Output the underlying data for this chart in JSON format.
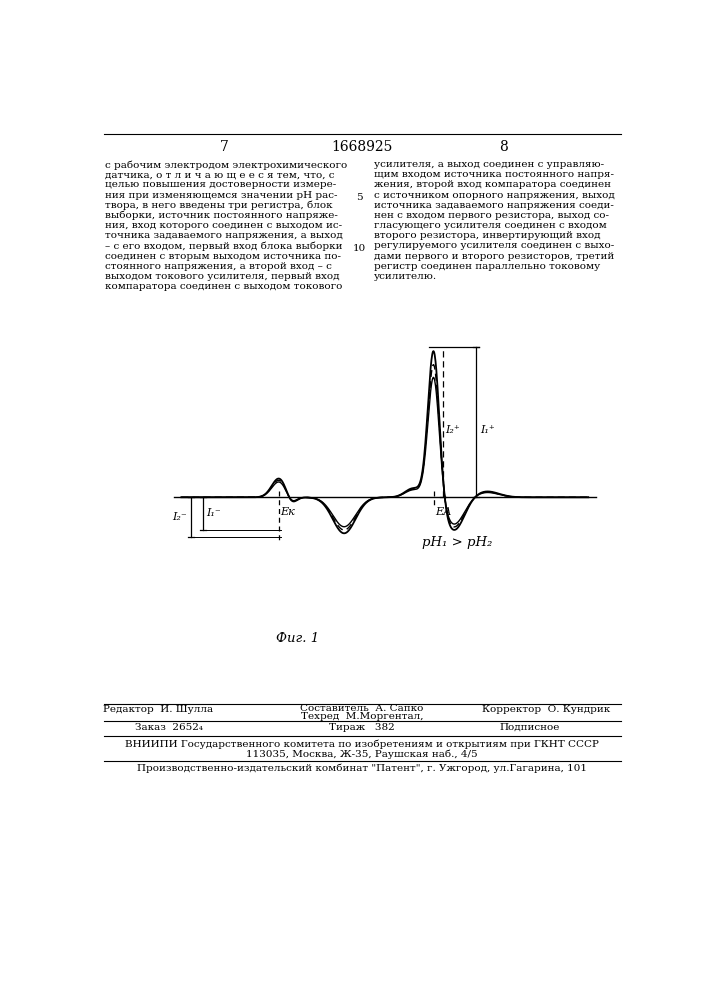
{
  "page_num_left": "7",
  "page_num_center": "1668925",
  "page_num_right": "8",
  "col1_text": [
    "с рабочим электродом электрохимического",
    "датчика, о т л и ч а ю щ е е с я тем, что, с",
    "целью повышения достоверности измере-",
    "ния при изменяющемся значении рН рас-",
    "твора, в него введены три регистра, блок",
    "выборки, источник постоянного напряже-",
    "ния, вход которого соединен с выходом ис-",
    "точника задаваемого напряжения, а выход",
    "– с его входом, первый вход блока выборки",
    "соединен с вторым выходом источника по-",
    "стоянного напряжения, а второй вход – с",
    "выходом токового усилителя, первый вход",
    "компаратора соединен с выходом токового"
  ],
  "col2_text": [
    "усилителя, а выход соединен с управляю-",
    "щим входом источника постоянного напря-",
    "жения, второй вход компаратора соединен",
    "с источником опорного напряжения, выход",
    "источника задаваемого напряжения соеди-",
    "нен с входом первого резистора, выход со-",
    "гласующего усилителя соединен с входом",
    "второго резистора, инвертирующий вход",
    "регулируемого усилителя соединен с выхо-",
    "дами первого и второго резисторов, третий",
    "регистр соединен параллельно токовому",
    "усилителю."
  ],
  "line_num_5_row": 3,
  "line_num_10_row": 8,
  "fig_caption": "Фиг. 1",
  "annotation_pH": "рН₁ > рН₂",
  "label_EK": "Eк",
  "label_EA": "EА",
  "label_I2minus": "I₂⁻",
  "label_I1minus": "I₁⁻",
  "label_I2plus": "I₂⁺",
  "label_I1plus": "I₁⁺",
  "footer_editor": "Редактор  И. Шулла",
  "footer_composer": "Составитель  А. Сапко",
  "footer_tech": "Техред  М.Моргентал,",
  "footer_corrector": "Корректор  О. Кундрик",
  "footer_order": "Заказ  2652₄",
  "footer_print": "Тираж   382",
  "footer_sign": "Подписное",
  "footer_vniipи": "ВНИИПИ Государственного комитета по изобретениям и открытиям при ГКНТ СССР",
  "footer_addr": "113035, Москва, Ж-35, Раушская наб., 4/5",
  "footer_prod": "Производственно-издательский комбинат \"Патент\", г. Ужгород, ул.Гагарина, 101"
}
